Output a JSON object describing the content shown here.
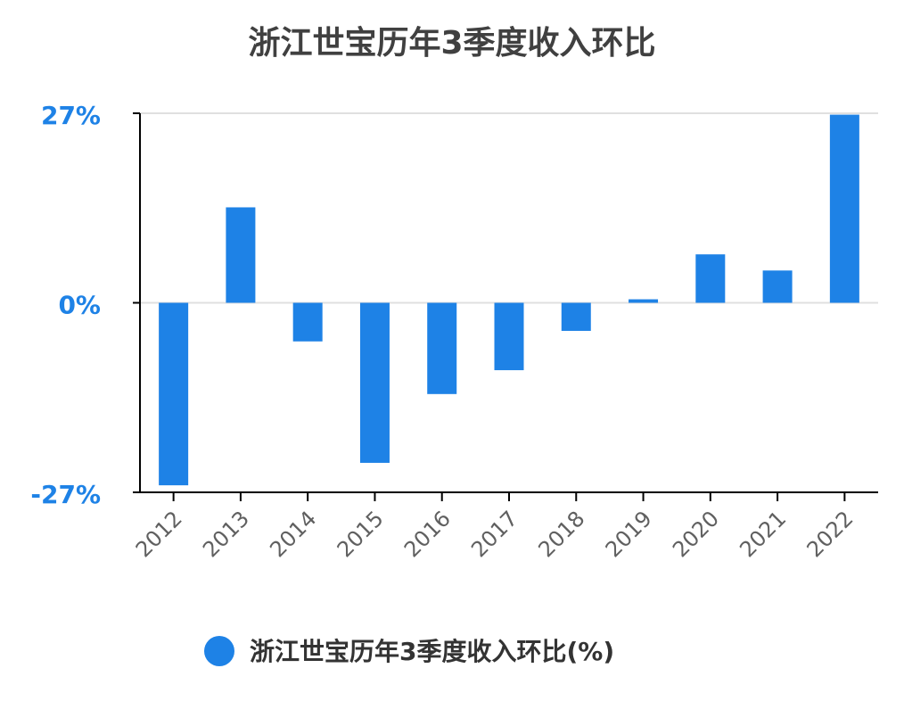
{
  "chart_data": {
    "type": "bar",
    "title": "浙江世宝历年3季度收入环比",
    "categories": [
      "2012",
      "2013",
      "2014",
      "2015",
      "2016",
      "2017",
      "2018",
      "2019",
      "2020",
      "2021",
      "2022"
    ],
    "series": [
      {
        "name": "浙江世宝历年3季度收入环比(%)",
        "color": "#1e82e6",
        "values": [
          -26.0,
          13.6,
          -5.5,
          -22.8,
          -13.0,
          -9.6,
          -4.0,
          0.5,
          6.9,
          4.6,
          26.8
        ]
      }
    ],
    "ylim": [
      -27,
      27
    ],
    "yticks": [
      {
        "value": -27,
        "label": "-27%"
      },
      {
        "value": 0,
        "label": "0%"
      },
      {
        "value": 27,
        "label": "27%"
      }
    ],
    "grid": true,
    "legend": "bottom"
  }
}
